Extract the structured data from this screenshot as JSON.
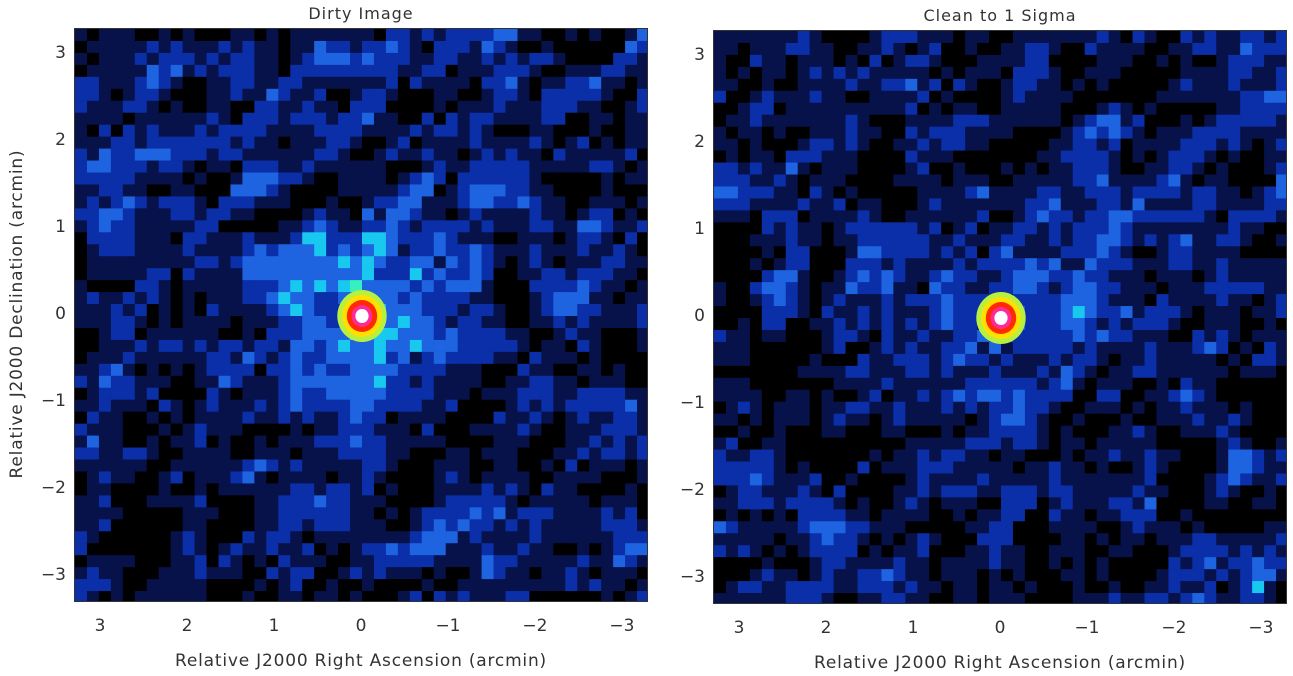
{
  "colors": {
    "background": "#ffffff",
    "frame": "#333333",
    "colormap": [
      "#000000",
      "#08124a",
      "#0a2fa8",
      "#1e63e0",
      "#18c8ee",
      "#37f0c0",
      "#b8f040",
      "#ffe000",
      "#ff2a00",
      "#ff2a9a",
      "#ffffff"
    ]
  },
  "chart_data": [
    {
      "type": "heatmap",
      "title": "Dirty Image",
      "xlabel": "Relative J2000 Right Ascension (arcmin)",
      "ylabel": "Relative J2000 Declination (arcmin)",
      "xlim": [
        3.3,
        -3.3
      ],
      "ylim": [
        -3.3,
        3.3
      ],
      "x_ticks": [
        3,
        2,
        1,
        0,
        -1,
        -2,
        -3
      ],
      "y_ticks": [
        3,
        2,
        1,
        0,
        -1,
        -2,
        -3
      ],
      "x_tick_labels": [
        "3",
        "2",
        "1",
        "0",
        "−1",
        "−2",
        "−3"
      ],
      "y_tick_labels": [
        "3",
        "2",
        "1",
        "0",
        "−1",
        "−2",
        "−3"
      ],
      "grid": false,
      "colorscale": "rainbow (black–blue–cyan–green–yellow–red–magenta–white)",
      "peak": {
        "x": 0.0,
        "y": 0.0,
        "level": "white"
      },
      "features": [
        "compact bright source at the phase center",
        "extended cyan sidelobe emission around the source"
      ]
    },
    {
      "type": "heatmap",
      "title": "Clean to 1 Sigma",
      "xlabel": "Relative J2000 Right Ascension (arcmin)",
      "ylabel": "",
      "xlim": [
        3.3,
        -3.3
      ],
      "ylim": [
        -3.3,
        3.3
      ],
      "x_ticks": [
        3,
        2,
        1,
        0,
        -1,
        -2,
        -3
      ],
      "y_ticks": [
        3,
        2,
        1,
        0,
        -1,
        -2,
        -3
      ],
      "x_tick_labels": [
        "3",
        "2",
        "1",
        "0",
        "−1",
        "−2",
        "−3"
      ],
      "y_tick_labels": [
        "3",
        "2",
        "1",
        "0",
        "−1",
        "−2",
        "−3"
      ],
      "grid": false,
      "colorscale": "rainbow (black–blue–cyan–green–yellow–red–magenta–white)",
      "peak": {
        "x": 0.0,
        "y": 0.0,
        "level": "white"
      },
      "features": [
        "compact bright source at the phase center",
        "weaker residual noise field"
      ]
    }
  ]
}
